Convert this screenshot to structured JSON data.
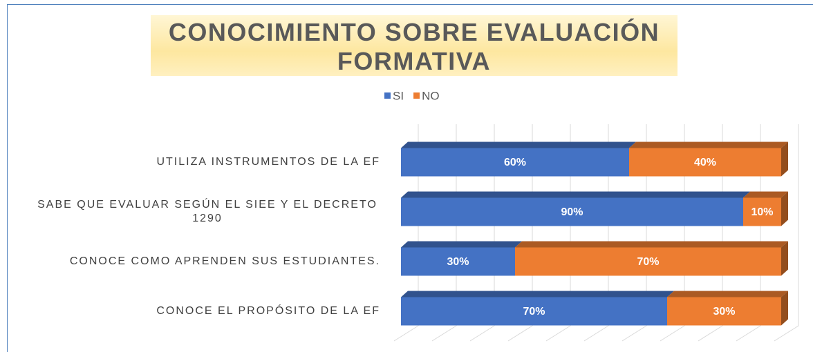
{
  "chart_data": {
    "type": "stacked-bar-horizontal",
    "title": "CONOCIMIENTO SOBRE EVALUACIÓN FORMATIVA",
    "categories": [
      "UTILIZA INSTRUMENTOS DE LA EF",
      "SABE QUE EVALUAR SEGÚN EL SIEE  Y EL DECRETO 1290",
      "CONOCE COMO APRENDEN SUS ESTUDIANTES.",
      "CONOCE EL PROPÓSITO DE LA EF"
    ],
    "series": [
      {
        "name": "SI",
        "color": "#4472c4",
        "values": [
          60,
          90,
          30,
          70
        ],
        "value_labels": [
          "60%",
          "90%",
          "30%",
          "70%"
        ]
      },
      {
        "name": "NO",
        "color": "#ed7d31",
        "values": [
          40,
          10,
          70,
          30
        ],
        "value_labels": [
          "40%",
          "10%",
          "70%",
          "30%"
        ]
      }
    ],
    "xlim": [
      0,
      100
    ],
    "xticks": [
      0,
      10,
      20,
      30,
      40,
      50,
      60,
      70,
      80,
      90,
      100
    ],
    "grid": true,
    "legend": "top"
  }
}
